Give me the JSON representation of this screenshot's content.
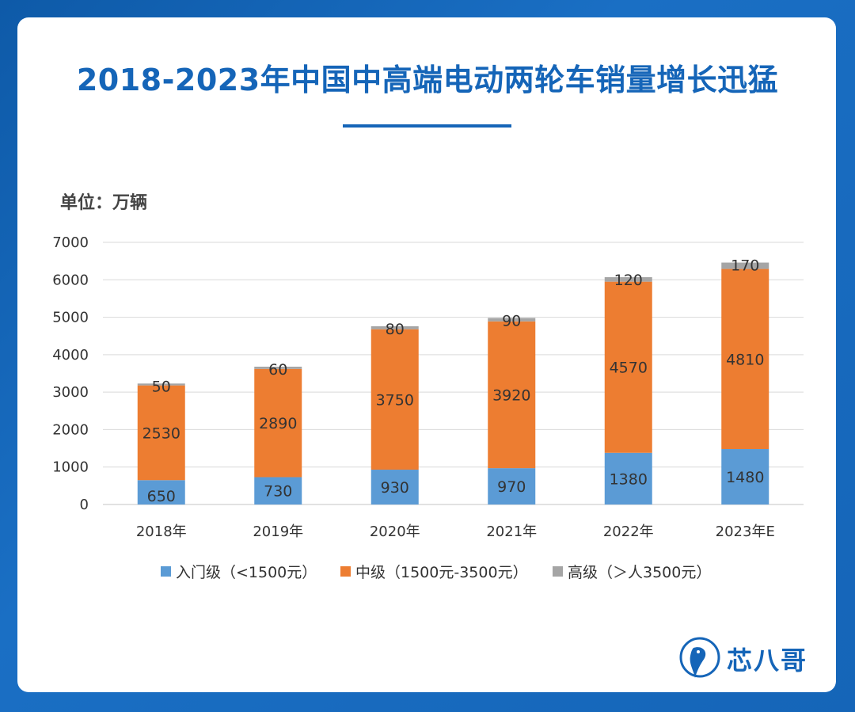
{
  "title": "2018-2023年中国中高端电动两轮车销量增长迅猛",
  "unit_label": "单位：万辆",
  "logo_text": "芯八哥",
  "colors": {
    "entry": "#5b9bd5",
    "mid": "#ed7d31",
    "high": "#a5a5a5",
    "brand": "#1565b8"
  },
  "chart_data": {
    "type": "bar",
    "stacked": true,
    "categories": [
      "2018年",
      "2019年",
      "2020年",
      "2021年",
      "2022年",
      "2023年E"
    ],
    "series": [
      {
        "name": "入门级（<1500元）",
        "values": [
          650,
          730,
          930,
          970,
          1380,
          1480
        ]
      },
      {
        "name": "中级（1500元-3500元）",
        "values": [
          2530,
          2890,
          3750,
          3920,
          4570,
          4810
        ]
      },
      {
        "name": "高级（＞人3500元）",
        "values": [
          50,
          60,
          80,
          90,
          120,
          170
        ]
      }
    ],
    "ylim": [
      0,
      7000
    ],
    "yticks": [
      "0",
      "1000",
      "2000",
      "3000",
      "4000",
      "5000",
      "6000",
      "7000"
    ],
    "grid": true,
    "legend_position": "bottom"
  }
}
